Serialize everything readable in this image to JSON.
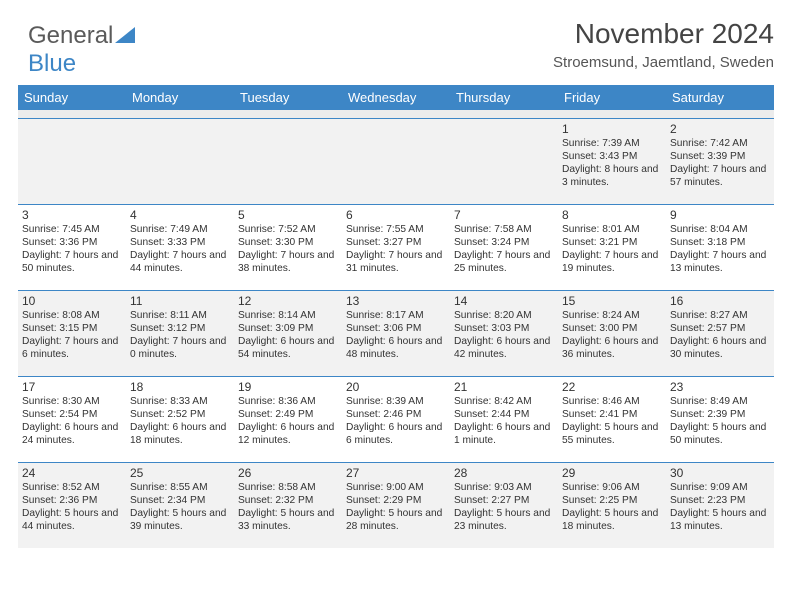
{
  "logo": {
    "text1": "General",
    "text2": "Blue"
  },
  "title": "November 2024",
  "location": "Stroemsund, Jaemtland, Sweden",
  "colors": {
    "header_bg": "#3d86c6",
    "header_fg": "#ffffff",
    "border": "#3d86c6",
    "shaded_bg": "#f2f2f2",
    "text": "#333333",
    "page_bg": "#ffffff"
  },
  "day_headers": [
    "Sunday",
    "Monday",
    "Tuesday",
    "Wednesday",
    "Thursday",
    "Friday",
    "Saturday"
  ],
  "weeks": [
    [
      {
        "n": "",
        "lines": []
      },
      {
        "n": "",
        "lines": []
      },
      {
        "n": "",
        "lines": []
      },
      {
        "n": "",
        "lines": []
      },
      {
        "n": "",
        "lines": []
      },
      {
        "n": "1",
        "lines": [
          "Sunrise: 7:39 AM",
          "Sunset: 3:43 PM",
          "Daylight: 8 hours and 3 minutes."
        ]
      },
      {
        "n": "2",
        "lines": [
          "Sunrise: 7:42 AM",
          "Sunset: 3:39 PM",
          "Daylight: 7 hours and 57 minutes."
        ]
      }
    ],
    [
      {
        "n": "3",
        "lines": [
          "Sunrise: 7:45 AM",
          "Sunset: 3:36 PM",
          "Daylight: 7 hours and 50 minutes."
        ]
      },
      {
        "n": "4",
        "lines": [
          "Sunrise: 7:49 AM",
          "Sunset: 3:33 PM",
          "Daylight: 7 hours and 44 minutes."
        ]
      },
      {
        "n": "5",
        "lines": [
          "Sunrise: 7:52 AM",
          "Sunset: 3:30 PM",
          "Daylight: 7 hours and 38 minutes."
        ]
      },
      {
        "n": "6",
        "lines": [
          "Sunrise: 7:55 AM",
          "Sunset: 3:27 PM",
          "Daylight: 7 hours and 31 minutes."
        ]
      },
      {
        "n": "7",
        "lines": [
          "Sunrise: 7:58 AM",
          "Sunset: 3:24 PM",
          "Daylight: 7 hours and 25 minutes."
        ]
      },
      {
        "n": "8",
        "lines": [
          "Sunrise: 8:01 AM",
          "Sunset: 3:21 PM",
          "Daylight: 7 hours and 19 minutes."
        ]
      },
      {
        "n": "9",
        "lines": [
          "Sunrise: 8:04 AM",
          "Sunset: 3:18 PM",
          "Daylight: 7 hours and 13 minutes."
        ]
      }
    ],
    [
      {
        "n": "10",
        "lines": [
          "Sunrise: 8:08 AM",
          "Sunset: 3:15 PM",
          "Daylight: 7 hours and 6 minutes."
        ]
      },
      {
        "n": "11",
        "lines": [
          "Sunrise: 8:11 AM",
          "Sunset: 3:12 PM",
          "Daylight: 7 hours and 0 minutes."
        ]
      },
      {
        "n": "12",
        "lines": [
          "Sunrise: 8:14 AM",
          "Sunset: 3:09 PM",
          "Daylight: 6 hours and 54 minutes."
        ]
      },
      {
        "n": "13",
        "lines": [
          "Sunrise: 8:17 AM",
          "Sunset: 3:06 PM",
          "Daylight: 6 hours and 48 minutes."
        ]
      },
      {
        "n": "14",
        "lines": [
          "Sunrise: 8:20 AM",
          "Sunset: 3:03 PM",
          "Daylight: 6 hours and 42 minutes."
        ]
      },
      {
        "n": "15",
        "lines": [
          "Sunrise: 8:24 AM",
          "Sunset: 3:00 PM",
          "Daylight: 6 hours and 36 minutes."
        ]
      },
      {
        "n": "16",
        "lines": [
          "Sunrise: 8:27 AM",
          "Sunset: 2:57 PM",
          "Daylight: 6 hours and 30 minutes."
        ]
      }
    ],
    [
      {
        "n": "17",
        "lines": [
          "Sunrise: 8:30 AM",
          "Sunset: 2:54 PM",
          "Daylight: 6 hours and 24 minutes."
        ]
      },
      {
        "n": "18",
        "lines": [
          "Sunrise: 8:33 AM",
          "Sunset: 2:52 PM",
          "Daylight: 6 hours and 18 minutes."
        ]
      },
      {
        "n": "19",
        "lines": [
          "Sunrise: 8:36 AM",
          "Sunset: 2:49 PM",
          "Daylight: 6 hours and 12 minutes."
        ]
      },
      {
        "n": "20",
        "lines": [
          "Sunrise: 8:39 AM",
          "Sunset: 2:46 PM",
          "Daylight: 6 hours and 6 minutes."
        ]
      },
      {
        "n": "21",
        "lines": [
          "Sunrise: 8:42 AM",
          "Sunset: 2:44 PM",
          "Daylight: 6 hours and 1 minute."
        ]
      },
      {
        "n": "22",
        "lines": [
          "Sunrise: 8:46 AM",
          "Sunset: 2:41 PM",
          "Daylight: 5 hours and 55 minutes."
        ]
      },
      {
        "n": "23",
        "lines": [
          "Sunrise: 8:49 AM",
          "Sunset: 2:39 PM",
          "Daylight: 5 hours and 50 minutes."
        ]
      }
    ],
    [
      {
        "n": "24",
        "lines": [
          "Sunrise: 8:52 AM",
          "Sunset: 2:36 PM",
          "Daylight: 5 hours and 44 minutes."
        ]
      },
      {
        "n": "25",
        "lines": [
          "Sunrise: 8:55 AM",
          "Sunset: 2:34 PM",
          "Daylight: 5 hours and 39 minutes."
        ]
      },
      {
        "n": "26",
        "lines": [
          "Sunrise: 8:58 AM",
          "Sunset: 2:32 PM",
          "Daylight: 5 hours and 33 minutes."
        ]
      },
      {
        "n": "27",
        "lines": [
          "Sunrise: 9:00 AM",
          "Sunset: 2:29 PM",
          "Daylight: 5 hours and 28 minutes."
        ]
      },
      {
        "n": "28",
        "lines": [
          "Sunrise: 9:03 AM",
          "Sunset: 2:27 PM",
          "Daylight: 5 hours and 23 minutes."
        ]
      },
      {
        "n": "29",
        "lines": [
          "Sunrise: 9:06 AM",
          "Sunset: 2:25 PM",
          "Daylight: 5 hours and 18 minutes."
        ]
      },
      {
        "n": "30",
        "lines": [
          "Sunrise: 9:09 AM",
          "Sunset: 2:23 PM",
          "Daylight: 5 hours and 13 minutes."
        ]
      }
    ]
  ]
}
